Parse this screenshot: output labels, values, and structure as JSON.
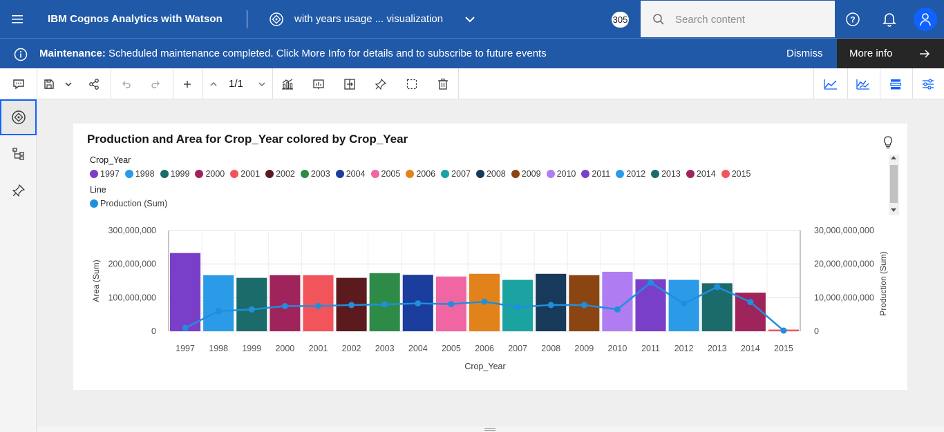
{
  "header": {
    "app_title": "IBM Cognos Analytics with Watson",
    "report_name": "with years usage ... visualization",
    "notification_count": "305",
    "search_placeholder": "Search content"
  },
  "banner": {
    "label": "Maintenance:",
    "message": "Scheduled maintenance completed. Click More Info for details and to subscribe to future events",
    "dismiss_label": "Dismiss",
    "more_info_label": "More info"
  },
  "toolbar": {
    "page_indicator": "1/1"
  },
  "card": {
    "title": "Production and Area for Crop_Year colored by Crop_Year",
    "legend_title": "Crop_Year",
    "line_legend_title": "Line",
    "line_series_label": "Production (Sum)"
  },
  "colors": {
    "header_bg": "#2059a8",
    "line_series": "#1f8fdd"
  },
  "chart_data": {
    "type": "bar+line",
    "title": "Production and Area for Crop_Year colored by Crop_Year",
    "xlabel": "Crop_Year",
    "ylabel_left": "Area (Sum)",
    "ylabel_right": "Production (Sum)",
    "categories": [
      "1997",
      "1998",
      "1999",
      "2000",
      "2001",
      "2002",
      "2003",
      "2004",
      "2005",
      "2006",
      "2007",
      "2008",
      "2009",
      "2010",
      "2011",
      "2012",
      "2013",
      "2014",
      "2015"
    ],
    "bar_colors": [
      "#7a3fc8",
      "#2b9be8",
      "#1b6b6b",
      "#a0245c",
      "#f2545b",
      "#5b1a1e",
      "#2e8b47",
      "#1a3d9e",
      "#ef66a3",
      "#e1831a",
      "#1aa3a0",
      "#183a5a",
      "#8b4513",
      "#b07cf2",
      "#7a3fc8",
      "#2b9be8",
      "#1b6b6b",
      "#a0245c",
      "#f2545b"
    ],
    "ylim_left": [
      0,
      300000000
    ],
    "ylim_right": [
      0,
      30000000000
    ],
    "left_ticks": [
      "0",
      "100,000,000",
      "200,000,000",
      "300,000,000"
    ],
    "right_ticks": [
      "0",
      "10,000,000,000",
      "20,000,000,000",
      "30,000,000,000"
    ],
    "series": [
      {
        "name": "Area (Sum)",
        "kind": "bar",
        "values": [
          233000000,
          167000000,
          159000000,
          167000000,
          167000000,
          159000000,
          173000000,
          168000000,
          163000000,
          171000000,
          153000000,
          171000000,
          167000000,
          177000000,
          155000000,
          153000000,
          143000000,
          115000000,
          5000000
        ]
      },
      {
        "name": "Production (Sum)",
        "kind": "line",
        "values": [
          1000000000,
          6000000000,
          6500000000,
          7500000000,
          7500000000,
          7800000000,
          8000000000,
          8300000000,
          8100000000,
          8800000000,
          7200000000,
          7800000000,
          7800000000,
          6500000000,
          14500000000,
          8200000000,
          13200000000,
          8700000000,
          200000000
        ]
      }
    ]
  }
}
